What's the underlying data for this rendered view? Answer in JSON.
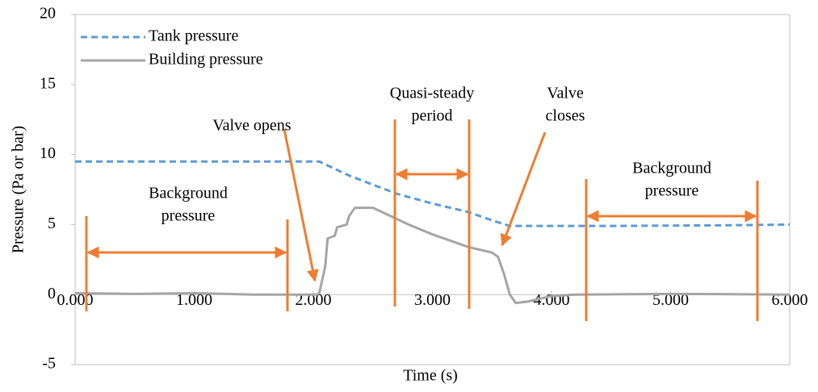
{
  "chart_data": {
    "type": "line",
    "xlabel": "Time (s)",
    "ylabel": "Pressure (Pa or bar)",
    "xlim": [
      0,
      6
    ],
    "ylim": [
      -5,
      20
    ],
    "xticks": [
      {
        "value": 0,
        "label": "0.000"
      },
      {
        "value": 1,
        "label": "1.000"
      },
      {
        "value": 2,
        "label": "2.000"
      },
      {
        "value": 3,
        "label": "3.000"
      },
      {
        "value": 4,
        "label": "4.000"
      },
      {
        "value": 5,
        "label": "5.000"
      },
      {
        "value": 6,
        "label": "6.000"
      }
    ],
    "yticks": [
      -5,
      0,
      5,
      10,
      15,
      20
    ],
    "grid": false,
    "legend": "upper left",
    "series": [
      {
        "name": "Tank pressure",
        "color": "#5b9bd5",
        "dashed": true,
        "x": [
          0,
          2.05,
          2.3,
          2.7,
          3.0,
          3.3,
          3.5,
          3.65,
          4.5,
          5.5,
          6.0
        ],
        "values": [
          9.5,
          9.5,
          8.5,
          7.2,
          6.5,
          5.9,
          5.3,
          4.9,
          4.9,
          4.95,
          5.0
        ]
      },
      {
        "name": "Building pressure",
        "color": "#a5a5a5",
        "dashed": false,
        "x": [
          0,
          0.5,
          1.0,
          1.5,
          2.03,
          2.05,
          2.1,
          2.12,
          2.18,
          2.2,
          2.28,
          2.3,
          2.35,
          2.5,
          2.6,
          2.8,
          3.0,
          3.3,
          3.5,
          3.55,
          3.6,
          3.65,
          3.7,
          3.8,
          3.9,
          4.0,
          4.2,
          5.0,
          6.0
        ],
        "values": [
          0.1,
          0.05,
          0.1,
          0.0,
          0.0,
          0.1,
          2.0,
          4.0,
          4.2,
          4.8,
          5.0,
          5.6,
          6.2,
          6.2,
          5.8,
          5.0,
          4.3,
          3.4,
          3.0,
          2.7,
          1.5,
          0.0,
          -0.6,
          -0.5,
          -0.3,
          -0.1,
          0.0,
          0.05,
          0.0
        ]
      }
    ],
    "annotations": [
      {
        "text": [
          "Background",
          "pressure"
        ]
      },
      {
        "text": [
          "Valve opens"
        ]
      },
      {
        "text": [
          "Quasi-steady",
          "period"
        ]
      },
      {
        "text": [
          "Valve",
          "closes"
        ]
      },
      {
        "text": [
          "Background",
          "pressure"
        ]
      }
    ]
  }
}
